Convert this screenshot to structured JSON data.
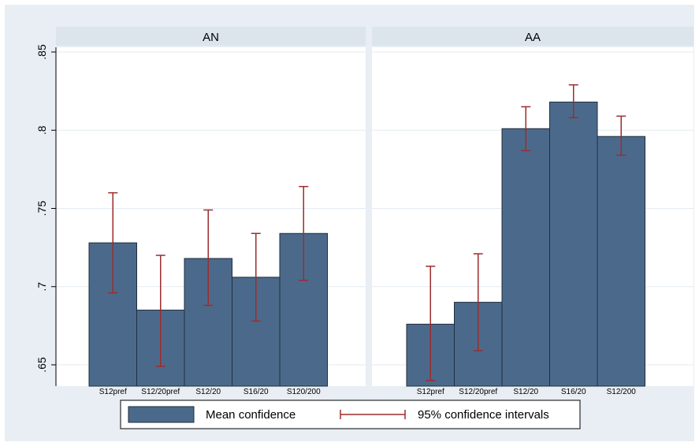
{
  "chart_data": {
    "type": "bar",
    "ylim": [
      0.65,
      0.85
    ],
    "yticks": [
      0.65,
      0.7,
      0.75,
      0.8,
      0.85
    ],
    "ytick_labels": [
      ".65",
      ".7",
      ".75",
      ".8",
      ".85"
    ],
    "grid": true,
    "legend_position": "bottom",
    "legend": {
      "bar_label": "Mean confidence",
      "ci_label": "95% confidence intervals"
    },
    "colors": {
      "bar": "#4b6a8b",
      "bar_edge": "#1f2d3d",
      "ci": "#9b2d2d",
      "background": "#e8eef3",
      "panel": "#ffffff",
      "strip": "#dce5ec",
      "grid": "#e3ebf1"
    },
    "panels": [
      {
        "title": "AN",
        "categories": [
          "S12pref",
          "S12/20pref",
          "S12/20",
          "S16/20",
          "S120/200"
        ],
        "values": [
          0.728,
          0.685,
          0.718,
          0.706,
          0.734
        ],
        "ci_lower": [
          0.696,
          0.649,
          0.688,
          0.678,
          0.704
        ],
        "ci_upper": [
          0.76,
          0.72,
          0.749,
          0.734,
          0.764
        ]
      },
      {
        "title": "AA",
        "categories": [
          "S12pref",
          "S12/20pref",
          "S12/20",
          "S16/20",
          "S12/200"
        ],
        "values": [
          0.676,
          0.69,
          0.801,
          0.818,
          0.796
        ],
        "ci_lower": [
          0.64,
          0.659,
          0.787,
          0.808,
          0.784
        ],
        "ci_upper": [
          0.713,
          0.721,
          0.815,
          0.829,
          0.809
        ]
      }
    ]
  }
}
